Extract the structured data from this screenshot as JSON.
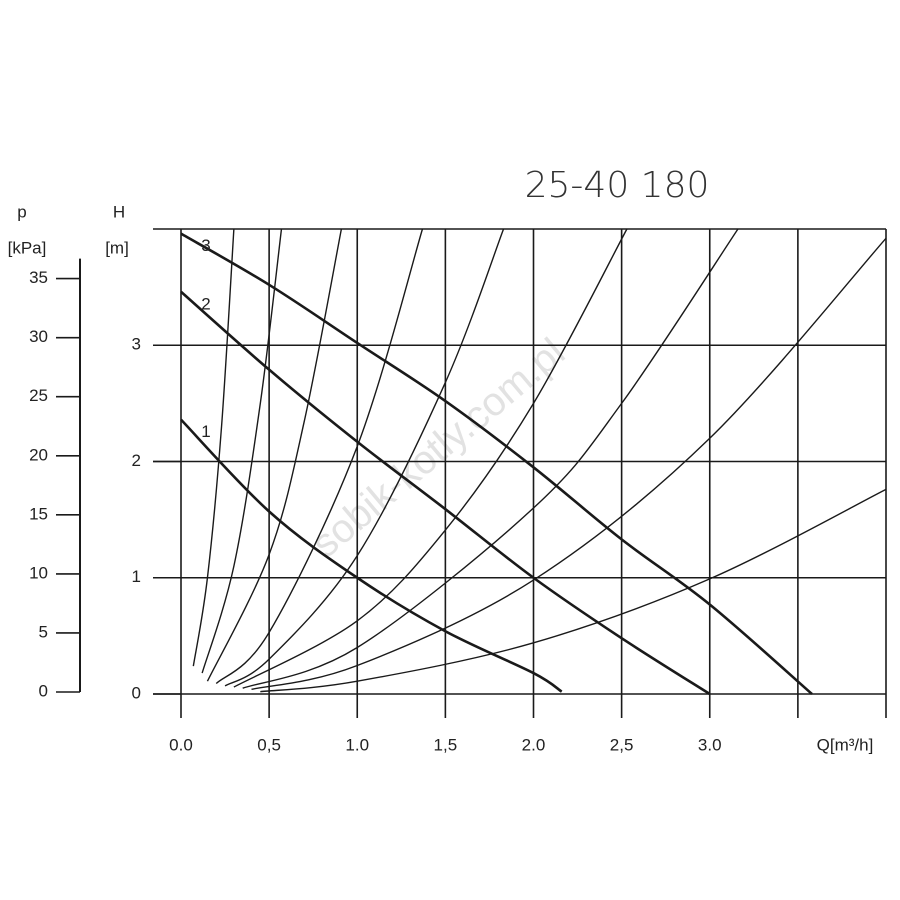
{
  "chart_data": {
    "type": "line",
    "title": "25-40 180",
    "xlabel": "Q[m³/h]",
    "ylabel": "H",
    "yunit": "[m]",
    "y2label": "p",
    "y2unit": "[kPa]",
    "watermark": "sobik-kotly.com.pl",
    "xlim": [
      0,
      4
    ],
    "xticks": [
      {
        "value": 0,
        "label": "0.0"
      },
      {
        "value": 0.5,
        "label": "0,5"
      },
      {
        "value": 1,
        "label": "1.0"
      },
      {
        "value": 1.5,
        "label": "1,5"
      },
      {
        "value": 2,
        "label": "2.0"
      },
      {
        "value": 2.5,
        "label": "2,5"
      },
      {
        "value": 3,
        "label": "3.0"
      }
    ],
    "xgrid": [
      0,
      0.5,
      1,
      1.5,
      2,
      2.5,
      3,
      3.5,
      4
    ],
    "ylim": [
      0,
      4
    ],
    "yticks": [
      0,
      1,
      2,
      3
    ],
    "ygrid": [
      1,
      2,
      3,
      4
    ],
    "y2lim": [
      0,
      39.2
    ],
    "y2ticks": [
      0,
      5,
      10,
      15,
      20,
      25,
      30,
      35
    ],
    "grid": true,
    "color": "#1a1a1a",
    "series": [
      {
        "name": "1",
        "x": [
          0,
          0.5,
          1.0,
          1.5,
          2.0,
          2.16
        ],
        "values": [
          2.36,
          1.57,
          1.0,
          0.54,
          0.18,
          0.02
        ]
      },
      {
        "name": "2",
        "x": [
          0,
          0.5,
          1.0,
          1.5,
          2.0,
          2.5,
          3.0
        ],
        "values": [
          3.46,
          2.79,
          2.17,
          1.59,
          1.0,
          0.48,
          0
        ]
      },
      {
        "name": "3",
        "x": [
          0,
          0.5,
          1.0,
          1.5,
          2.0,
          2.5,
          3.0,
          3.58
        ],
        "values": [
          3.96,
          3.52,
          3.02,
          2.52,
          1.95,
          1.33,
          0.77,
          0
        ]
      },
      {
        "x": [
          0.45,
          1,
          2,
          3,
          4
        ],
        "values": [
          0.02,
          0.11,
          0.44,
          0.99,
          1.76
        ]
      },
      {
        "x": [
          0.4,
          1,
          2,
          3,
          4
        ],
        "values": [
          0.04,
          0.245,
          0.98,
          2.2,
          3.92
        ]
      },
      {
        "x": [
          0.35,
          1,
          2,
          2.5,
          3.16
        ],
        "values": [
          0.05,
          0.4,
          1.6,
          2.5,
          4.0
        ]
      },
      {
        "x": [
          0.3,
          1,
          1.5,
          2,
          2.53
        ],
        "values": [
          0.06,
          0.63,
          1.41,
          2.5,
          4.0
        ]
      },
      {
        "x": [
          0.25,
          0.5,
          1,
          1.5,
          1.83
        ],
        "values": [
          0.07,
          0.3,
          1.19,
          2.68,
          4.0
        ]
      },
      {
        "x": [
          0.2,
          0.5,
          1,
          1.37
        ],
        "values": [
          0.09,
          0.53,
          2.13,
          4.0
        ]
      },
      {
        "x": [
          0.15,
          0.5,
          0.7,
          0.91
        ],
        "values": [
          0.11,
          1.2,
          2.35,
          4.0
        ]
      },
      {
        "x": [
          0.12,
          0.3,
          0.45,
          0.57
        ],
        "values": [
          0.18,
          1.1,
          2.5,
          4.0
        ]
      },
      {
        "x": [
          0.07,
          0.15,
          0.23,
          0.3
        ],
        "values": [
          0.24,
          1.0,
          2.3,
          4.0
        ]
      }
    ]
  }
}
